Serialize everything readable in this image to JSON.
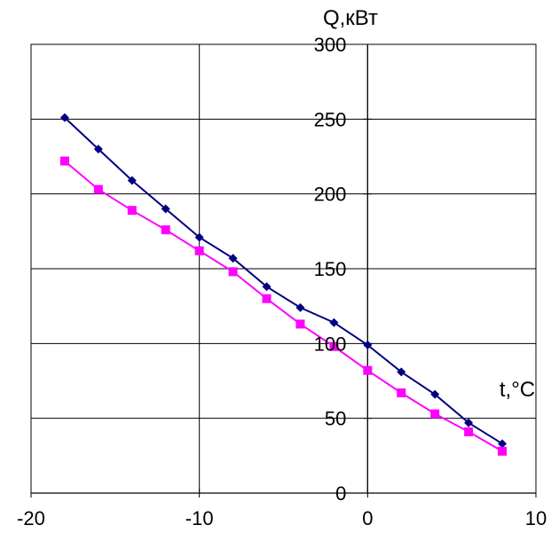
{
  "chart_data": {
    "type": "line",
    "title": "",
    "xlabel": "t,°C",
    "ylabel": "Q,кВт",
    "xlim": [
      -20,
      10
    ],
    "ylim": [
      0,
      300
    ],
    "x_ticks": [
      "-20",
      "-10",
      "0",
      "10"
    ],
    "y_ticks": [
      "0",
      "50",
      "100",
      "150",
      "200",
      "250",
      "300"
    ],
    "grid": true,
    "x": [
      -18,
      -16,
      -14,
      -12,
      -10,
      -8,
      -6,
      -4,
      -2,
      0,
      2,
      4,
      6,
      8
    ],
    "series": [
      {
        "color": "#000080",
        "marker": "diamond",
        "values": [
          251,
          230,
          209,
          190,
          171,
          157,
          138,
          124,
          114,
          99,
          81,
          66,
          47,
          33
        ]
      },
      {
        "color": "#ff00ff",
        "marker": "square",
        "values": [
          222,
          203,
          189,
          176,
          162,
          148,
          130,
          113,
          98,
          82,
          67,
          53,
          41,
          28
        ]
      }
    ]
  }
}
